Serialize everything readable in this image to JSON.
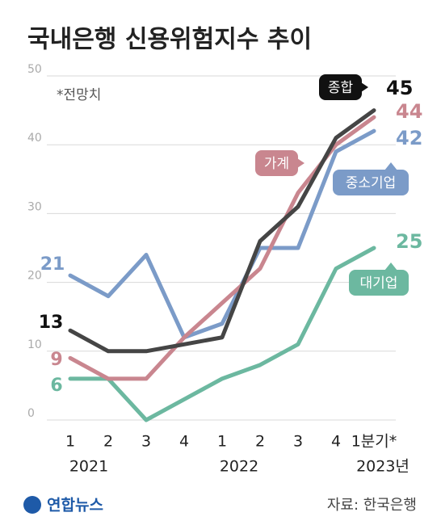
{
  "chart_data": {
    "type": "line",
    "title": "국내은행 신용위험지수 추이",
    "note": "*전망치",
    "categories": [
      "1",
      "2",
      "3",
      "4",
      "1",
      "2",
      "3",
      "4",
      "1분기*"
    ],
    "x_groups": [
      "2021",
      "2022",
      "2023년"
    ],
    "series": [
      {
        "name": "종합",
        "color": "#454545",
        "values": [
          13,
          10,
          10,
          11,
          12,
          26,
          31,
          41,
          45
        ]
      },
      {
        "name": "가계",
        "color": "#c9868f",
        "values": [
          9,
          6,
          6,
          12,
          17,
          22,
          33,
          40,
          44
        ]
      },
      {
        "name": "중소기업",
        "color": "#7b9bc8",
        "values": [
          21,
          18,
          24,
          12,
          14,
          25,
          25,
          39,
          42
        ]
      },
      {
        "name": "대기업",
        "color": "#6cb8a0",
        "values": [
          6,
          6,
          0,
          3,
          6,
          8,
          11,
          22,
          25
        ]
      }
    ],
    "ylim": [
      0,
      50
    ],
    "yticks": [
      0,
      10,
      20,
      30,
      40,
      50
    ],
    "grid": true,
    "source": "자료: 한국은행",
    "logo": "연합뉴스"
  }
}
